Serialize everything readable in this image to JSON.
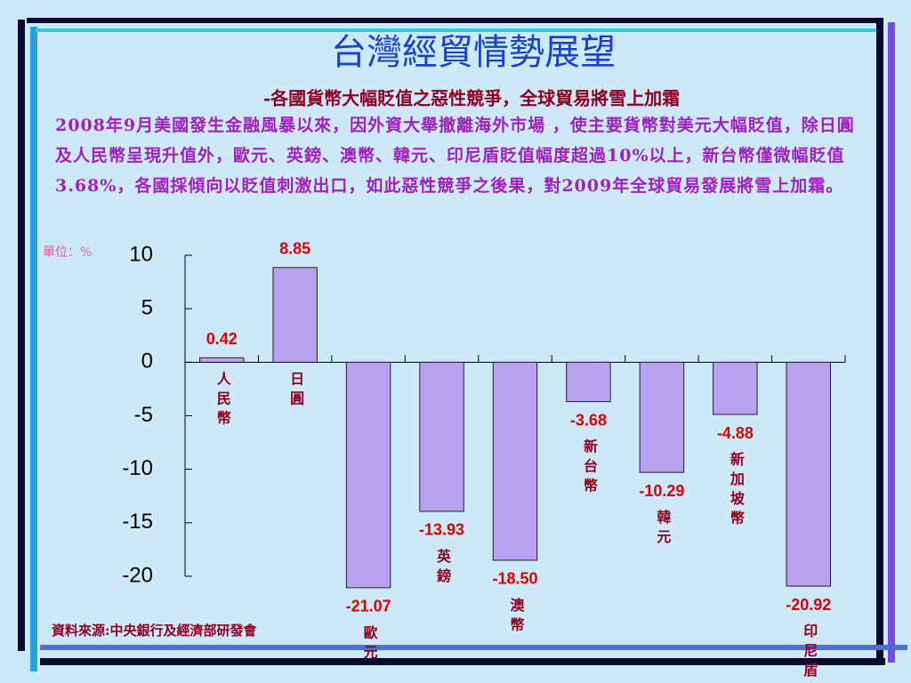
{
  "slide": {
    "title": "台灣經貿情勢展望",
    "subtitle": "-各國貨幣大幅貶值之惡性競爭，全球貿易將雪上加霜",
    "body": "2008年9月美國發生金融風暴以來，因外資大舉撤離海外市場 ，使主要貨幣對美元大幅貶值，除日圓及人民幣呈現升值外，歐元、英鎊、澳幣、韓元、印尼盾貶值幅度超過10%以上，新台幣僅微幅貶值3.68%，各國採傾向以貶值刺激出口，如此惡性競爭之後果，對2009年全球貿易發展將雪上加霜。",
    "unit": "單位：%",
    "source": "資料來源:中央銀行及經濟部研發會"
  },
  "chart_data": {
    "type": "bar",
    "categories": [
      "人民幣",
      "日圓",
      "歐元",
      "英鎊",
      "澳幣",
      "新台幣",
      "韓元",
      "新加坡幣",
      "印尼盾"
    ],
    "values": [
      0.42,
      8.85,
      -21.07,
      -13.93,
      -18.5,
      -3.68,
      -10.29,
      -4.88,
      -20.92
    ],
    "value_labels": [
      "0.42",
      "8.85",
      "-21.07",
      "-13.93",
      "-18.50",
      "-3.68",
      "-10.29",
      "-4.88",
      "-20.92"
    ],
    "color": "#b9a0f0",
    "ylim": [
      -20,
      10
    ],
    "yticks": [
      10,
      5,
      0,
      -5,
      -10,
      -15,
      -20
    ]
  }
}
